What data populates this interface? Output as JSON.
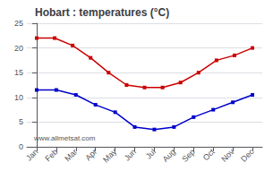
{
  "chart_data": {
    "type": "line",
    "title": "Hobart : temperatures (°C)",
    "annotations": [
      "www.allmetsat.com"
    ],
    "xlim": [
      -0.5,
      11.5
    ],
    "xticks": [
      {
        "value": 0,
        "label": "Jan"
      },
      {
        "value": 1,
        "label": "Feb"
      },
      {
        "value": 2,
        "label": "Mar"
      },
      {
        "value": 3,
        "label": "Apr"
      },
      {
        "value": 4,
        "label": "May"
      },
      {
        "value": 5,
        "label": "Jun"
      },
      {
        "value": 6,
        "label": "Jul"
      },
      {
        "value": 7,
        "label": "Aug"
      },
      {
        "value": 8,
        "label": "Sep"
      },
      {
        "value": 9,
        "label": "Oct"
      },
      {
        "value": 10,
        "label": "Nov"
      },
      {
        "value": 11,
        "label": "Dec"
      }
    ],
    "ylim": [
      0,
      25
    ],
    "yticks": [
      0,
      5,
      10,
      15,
      20,
      25
    ],
    "grid": true,
    "series": [
      {
        "color": "#cc0000",
        "marker": "square",
        "x": [
          0,
          0.9166666666666666,
          1.8333333333333333,
          2.75,
          3.6666666666666665,
          4.583333333333333,
          5.5,
          6.416666666666667,
          7.333333333333333,
          8.25,
          9.166666666666666,
          10.083333333333334,
          11
        ],
        "values": [
          22,
          22,
          20.5,
          18,
          15,
          12.5,
          12,
          12,
          13,
          15,
          17.5,
          18.5,
          20
        ]
      },
      {
        "color": "#0000cc",
        "marker": "square",
        "x": [
          0,
          1,
          2,
          3,
          4,
          5,
          6,
          7,
          8,
          9,
          10,
          11
        ],
        "values": [
          11.5,
          11.5,
          10.5,
          8.5,
          7,
          4,
          3.5,
          4,
          6,
          7.5,
          9,
          10.5
        ]
      }
    ]
  }
}
